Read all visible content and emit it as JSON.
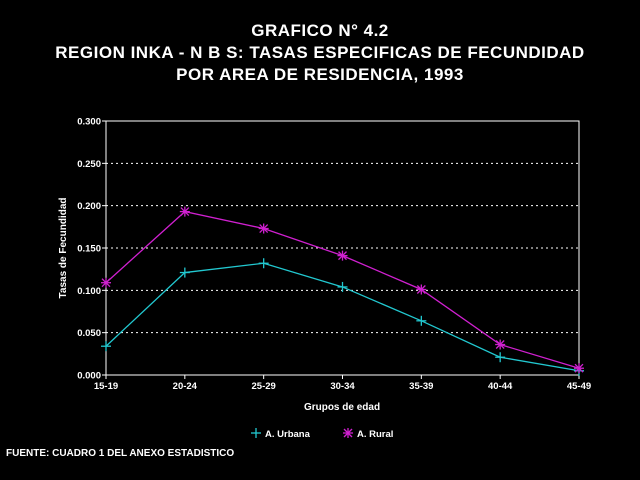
{
  "titles": {
    "line1": "GRAFICO N° 4.2",
    "line2": "REGION INKA - N B S: TASAS ESPECIFICAS DE FECUNDIDAD",
    "line3": "POR AREA DE RESIDENCIA, 1993"
  },
  "source": "FUENTE: CUADRO 1 DEL ANEXO ESTADISTICO",
  "colors": {
    "background": "#000000",
    "urbana": "#22c8d0",
    "rural": "#d020d0",
    "grid": "#ffffff"
  },
  "chart_data": {
    "type": "line",
    "xlabel": "Grupos de edad",
    "ylabel": "Tasas de Fecundidad",
    "categories": [
      "15-19",
      "20-24",
      "25-29",
      "30-34",
      "35-39",
      "40-44",
      "45-49"
    ],
    "ylim": [
      0,
      0.3
    ],
    "yticks": [
      "0.000",
      "0.050",
      "0.100",
      "0.150",
      "0.200",
      "0.250",
      "0.300"
    ],
    "grid": "horizontal dotted",
    "legend": "bottom-center",
    "series": [
      {
        "name": "A. Urbana",
        "marker": "plus",
        "values": [
          0.034,
          0.121,
          0.132,
          0.104,
          0.064,
          0.021,
          0.005
        ]
      },
      {
        "name": "A. Rural",
        "marker": "asterisk",
        "values": [
          0.109,
          0.193,
          0.173,
          0.141,
          0.101,
          0.036,
          0.008
        ]
      }
    ]
  }
}
